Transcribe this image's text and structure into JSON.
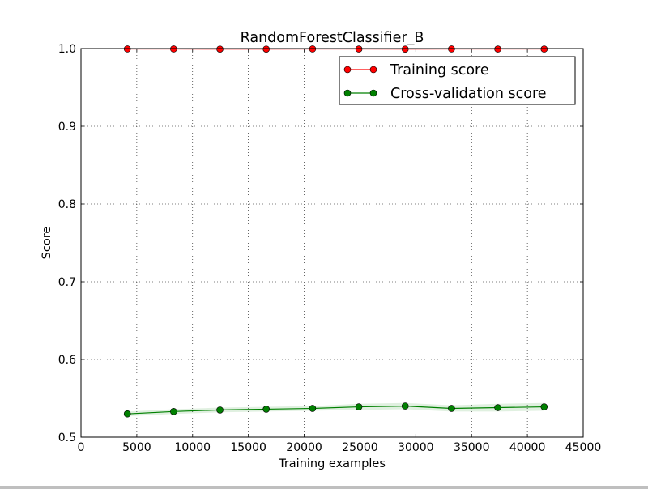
{
  "chart_data": {
    "type": "line",
    "title": "RandomForestClassifier_B",
    "xlabel": "Training examples",
    "ylabel": "Score",
    "xlim": [
      0,
      45000
    ],
    "ylim": [
      0.5,
      1.0
    ],
    "xticks": [
      0,
      5000,
      10000,
      15000,
      20000,
      25000,
      30000,
      35000,
      40000,
      45000
    ],
    "yticks": [
      0.5,
      0.6,
      0.7,
      0.8,
      0.9,
      1.0
    ],
    "xtick_labels": [
      "0",
      "5000",
      "10000",
      "15000",
      "20000",
      "25000",
      "30000",
      "35000",
      "40000",
      "45000"
    ],
    "ytick_labels": [
      "0.5",
      "0.6",
      "0.7",
      "0.8",
      "0.9",
      "1.0"
    ],
    "grid": true,
    "legend_position": "top-right",
    "x": [
      4150,
      8300,
      12450,
      16600,
      20750,
      24900,
      29050,
      33200,
      37350,
      41500
    ],
    "series": [
      {
        "name": "Training score",
        "color": "#ff0000",
        "marker_color": "#ff0000",
        "values": [
          0.9995,
          0.9995,
          0.9993,
          0.9993,
          0.9995,
          0.9994,
          0.9993,
          0.9995,
          0.9994,
          0.9994
        ],
        "band": [
          0.0002,
          0.0002,
          0.0002,
          0.0002,
          0.0002,
          0.0002,
          0.0002,
          0.0002,
          0.0002,
          0.0002
        ]
      },
      {
        "name": "Cross-validation score",
        "color": "#008000",
        "marker_color": "#008000",
        "values": [
          0.53,
          0.533,
          0.535,
          0.536,
          0.537,
          0.539,
          0.54,
          0.537,
          0.538,
          0.539
        ],
        "band": [
          0.003,
          0.003,
          0.003,
          0.003,
          0.003,
          0.004,
          0.004,
          0.004,
          0.005,
          0.005
        ]
      }
    ]
  }
}
